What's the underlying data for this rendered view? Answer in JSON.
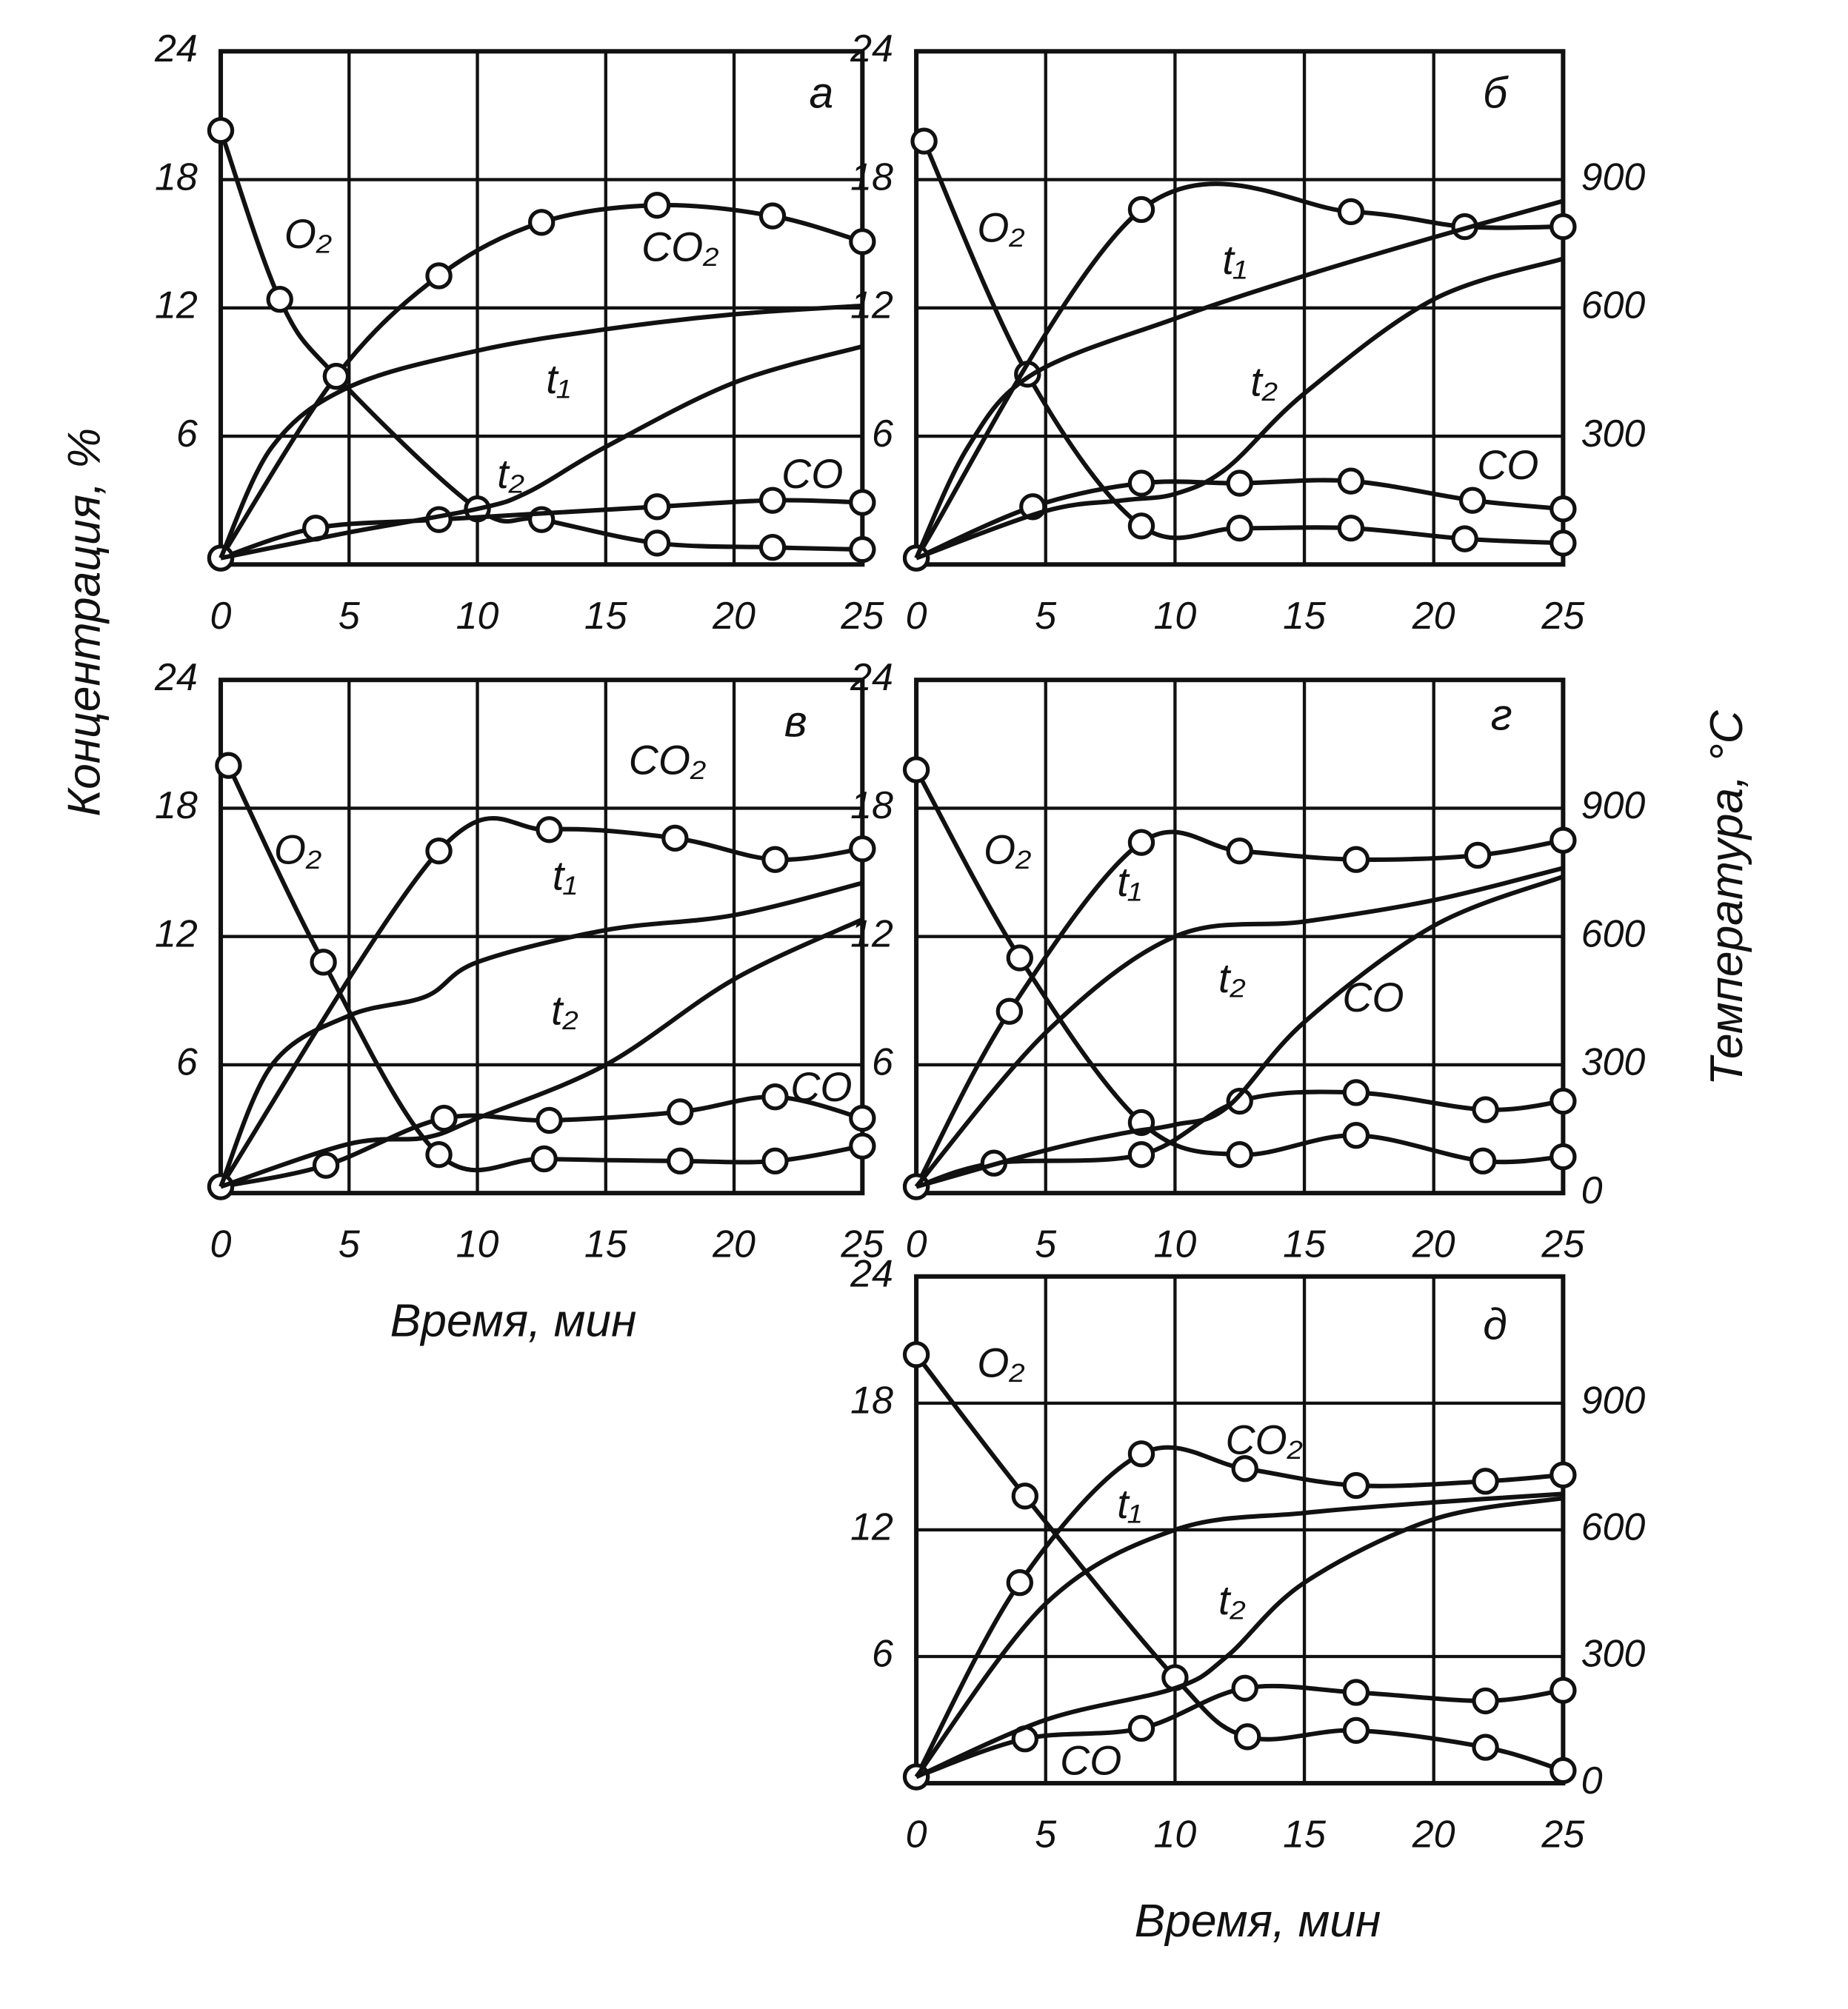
{
  "chart_data": [
    {
      "type": "line",
      "title": "а",
      "ylabel": "Концентрация, %",
      "xlim": [
        0,
        25
      ],
      "xticks": [
        0,
        5,
        10,
        15,
        20,
        25
      ],
      "ylim": [
        0,
        24
      ],
      "yticks": [
        6,
        12,
        18,
        24
      ],
      "y2lim": [
        0,
        1200
      ],
      "grid": true,
      "series": [
        {
          "name": "O₂",
          "marker": "circle",
          "x": [
            0,
            2.3,
            4.5,
            10,
            12.5,
            17,
            21.5,
            25
          ],
          "values": [
            20.3,
            12.4,
            8.8,
            2.6,
            2.1,
            1.0,
            0.8,
            0.7
          ]
        },
        {
          "name": "CO₂",
          "marker": "circle",
          "x": [
            0,
            4.5,
            8.5,
            12.5,
            17,
            21.5,
            25
          ],
          "values": [
            0.3,
            8.8,
            13.5,
            16.0,
            16.8,
            16.3,
            15.1
          ]
        },
        {
          "name": "CO",
          "marker": "circle",
          "x": [
            0,
            3.7,
            8.5,
            17,
            21.5,
            25
          ],
          "values": [
            0.3,
            1.7,
            2.1,
            2.7,
            3.0,
            2.9
          ]
        },
        {
          "name": "t₁",
          "axis": "y2",
          "x": [
            0,
            2,
            5,
            10,
            15,
            20,
            25
          ],
          "values": [
            15,
            275,
            415,
            500,
            550,
            585,
            605
          ]
        },
        {
          "name": "t₂",
          "axis": "y2",
          "x": [
            0,
            5,
            10,
            12,
            15,
            20,
            25
          ],
          "values": [
            15,
            75,
            130,
            170,
            275,
            425,
            510
          ]
        }
      ]
    },
    {
      "type": "line",
      "title": "б",
      "xlim": [
        0,
        25
      ],
      "xticks": [
        0,
        5,
        10,
        15,
        20,
        25
      ],
      "ylim": [
        0,
        24
      ],
      "yticks": [
        6,
        12,
        18,
        24
      ],
      "y2lim": [
        0,
        1200
      ],
      "y2ticks": [
        300,
        600,
        900
      ],
      "grid": true,
      "series": [
        {
          "name": "O₂",
          "marker": "circle",
          "x": [
            0.3,
            4.3,
            8.7,
            12.5,
            16.8,
            21.2,
            25
          ],
          "values": [
            19.8,
            8.9,
            1.8,
            1.7,
            1.7,
            1.2,
            1.0
          ]
        },
        {
          "marker": "circle",
          "x": [
            0,
            8.7,
            16.8,
            21.2,
            25
          ],
          "values": [
            0.3,
            16.6,
            16.5,
            15.8,
            15.8
          ]
        },
        {
          "name": "CO",
          "marker": "circle",
          "x": [
            0,
            4.5,
            8.7,
            12.5,
            16.8,
            21.5,
            25
          ],
          "values": [
            0.3,
            2.7,
            3.8,
            3.8,
            3.9,
            3.0,
            2.6
          ]
        },
        {
          "name": "t₁",
          "axis": "y2",
          "x": [
            0,
            2,
            4.5,
            10,
            15,
            20,
            25
          ],
          "values": [
            15,
            275,
            445,
            575,
            675,
            765,
            850
          ]
        },
        {
          "name": "t₂",
          "axis": "y2",
          "x": [
            0,
            5,
            8,
            10,
            12,
            15,
            20,
            25
          ],
          "values": [
            15,
            125,
            150,
            165,
            225,
            400,
            620,
            715
          ]
        }
      ]
    },
    {
      "type": "line",
      "title": "в",
      "xlabel": "Время, мин",
      "xlim": [
        0,
        25
      ],
      "xticks": [
        0,
        5,
        10,
        15,
        20,
        25
      ],
      "ylim": [
        0,
        24
      ],
      "yticks": [
        6,
        12,
        18,
        24
      ],
      "y2lim": [
        0,
        1200
      ],
      "grid": true,
      "series": [
        {
          "name": "O₂",
          "marker": "circle",
          "x": [
            0.3,
            4,
            8.5,
            12.6,
            17.9,
            21.6,
            25
          ],
          "values": [
            20.0,
            10.8,
            1.8,
            1.6,
            1.5,
            1.5,
            2.2
          ]
        },
        {
          "name": "CO₂",
          "marker": "circle",
          "x": [
            0,
            8.5,
            12.8,
            17.7,
            21.6,
            25
          ],
          "values": [
            0.3,
            16.0,
            17.0,
            16.6,
            15.6,
            16.1
          ]
        },
        {
          "name": "CO",
          "marker": "circle",
          "x": [
            0,
            4.1,
            8.7,
            12.8,
            17.9,
            21.6,
            25
          ],
          "values": [
            0.3,
            1.3,
            3.5,
            3.4,
            3.8,
            4.5,
            3.5
          ]
        },
        {
          "name": "t₁",
          "axis": "y2",
          "x": [
            0,
            2,
            5,
            8,
            10,
            15,
            20,
            25
          ],
          "values": [
            15,
            300,
            415,
            460,
            540,
            615,
            650,
            725
          ]
        },
        {
          "name": "t₂",
          "axis": "y2",
          "x": [
            0,
            5,
            8,
            10,
            15,
            20,
            25
          ],
          "values": [
            15,
            115,
            130,
            175,
            300,
            500,
            640
          ]
        }
      ]
    },
    {
      "type": "line",
      "title": "г",
      "y2label": "Температура, °C",
      "xlim": [
        0,
        25
      ],
      "xticks": [
        0,
        5,
        10,
        15,
        20,
        25
      ],
      "ylim": [
        0,
        24
      ],
      "yticks": [
        6,
        12,
        18,
        24
      ],
      "y2lim": [
        0,
        1200
      ],
      "y2ticks": [
        0,
        300,
        600,
        900
      ],
      "grid": true,
      "series": [
        {
          "name": "O₂",
          "marker": "circle",
          "x": [
            0,
            4,
            8.7,
            12.5,
            17,
            21.9,
            25
          ],
          "values": [
            19.8,
            11.0,
            3.3,
            1.8,
            2.7,
            1.5,
            1.7
          ]
        },
        {
          "marker": "circle",
          "x": [
            0,
            3.6,
            8.7,
            12.5,
            17,
            21.7,
            25
          ],
          "values": [
            0.3,
            8.5,
            16.4,
            16.0,
            15.6,
            15.8,
            16.5
          ]
        },
        {
          "name": "CO",
          "marker": "circle",
          "x": [
            0,
            3,
            8.7,
            12.5,
            17,
            22,
            25
          ],
          "values": [
            0.3,
            1.4,
            1.8,
            4.3,
            4.7,
            3.9,
            4.3
          ]
        },
        {
          "name": "t₁",
          "axis": "y2",
          "x": [
            0,
            5,
            10,
            15,
            20,
            25
          ],
          "values": [
            15,
            375,
            600,
            635,
            685,
            760
          ]
        },
        {
          "name": "t₂",
          "axis": "y2",
          "x": [
            0,
            5,
            8,
            10,
            12,
            15,
            20,
            25
          ],
          "values": [
            15,
            100,
            140,
            160,
            200,
            400,
            625,
            740
          ]
        }
      ]
    },
    {
      "type": "line",
      "title": "д",
      "xlabel": "Время, мин",
      "xlim": [
        0,
        25
      ],
      "xticks": [
        0,
        5,
        10,
        15,
        20,
        25
      ],
      "ylim": [
        0,
        24
      ],
      "yticks": [
        6,
        12,
        18,
        24
      ],
      "y2lim": [
        0,
        1200
      ],
      "y2ticks": [
        0,
        300,
        600,
        900
      ],
      "grid": true,
      "series": [
        {
          "name": "O₂",
          "marker": "circle",
          "x": [
            0,
            4.2,
            10,
            12.8,
            17,
            22,
            25
          ],
          "values": [
            20.3,
            13.6,
            5.0,
            2.2,
            2.5,
            1.7,
            0.6
          ]
        },
        {
          "name": "CO₂",
          "marker": "circle",
          "x": [
            0,
            4,
            8.7,
            12.7,
            17,
            22,
            25
          ],
          "values": [
            0.3,
            9.5,
            15.6,
            14.9,
            14.1,
            14.3,
            14.6
          ]
        },
        {
          "name": "CO",
          "marker": "circle",
          "x": [
            0,
            4.2,
            8.7,
            12.7,
            17,
            22,
            25
          ],
          "values": [
            0.3,
            2.1,
            2.6,
            4.5,
            4.3,
            3.9,
            4.4
          ]
        },
        {
          "name": "t₁",
          "axis": "y2",
          "x": [
            0,
            5,
            10,
            15,
            20,
            25
          ],
          "values": [
            15,
            425,
            600,
            640,
            665,
            685
          ]
        },
        {
          "name": "t₂",
          "axis": "y2",
          "x": [
            0,
            5,
            10,
            12,
            15,
            20,
            25
          ],
          "values": [
            15,
            150,
            225,
            300,
            475,
            625,
            675
          ]
        }
      ]
    }
  ]
}
